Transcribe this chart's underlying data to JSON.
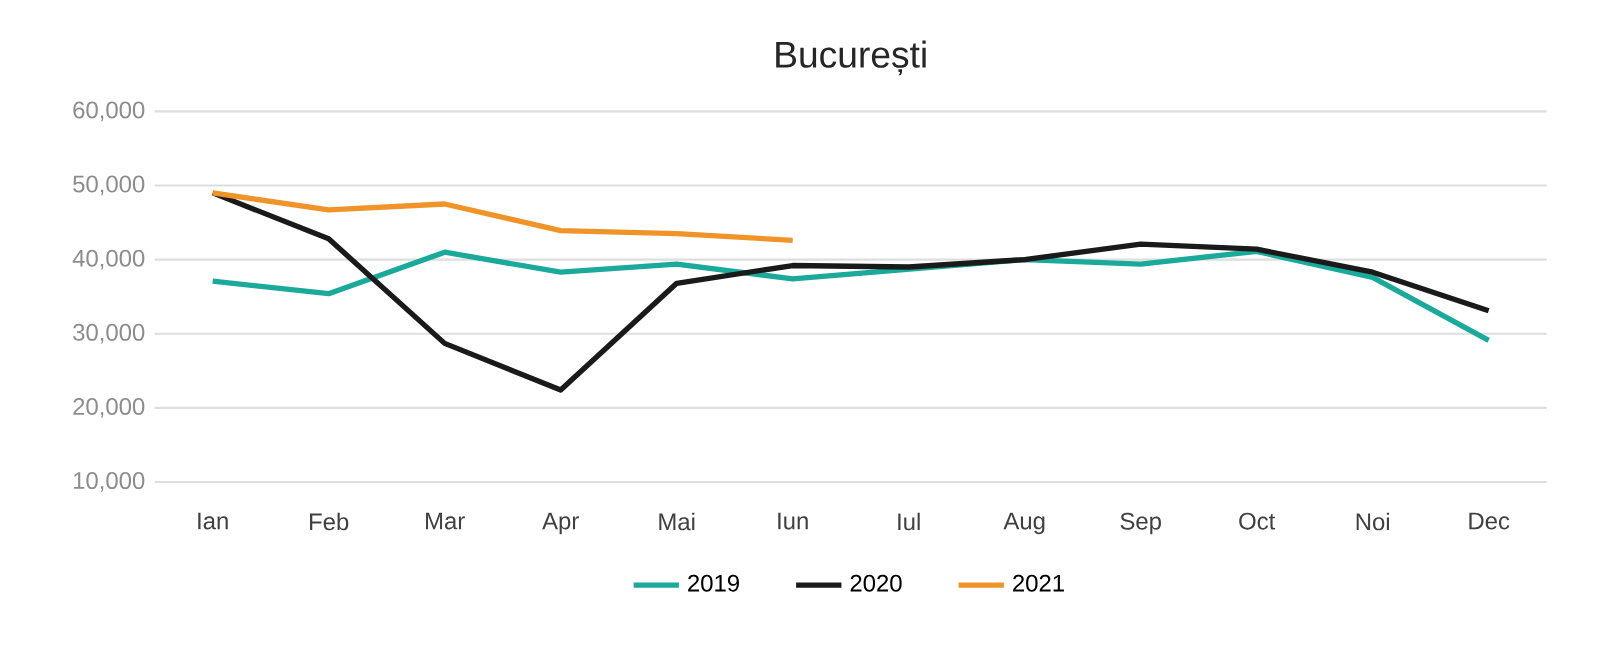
{
  "chart_data": {
    "type": "line",
    "title": "București",
    "categories": [
      "Ian",
      "Feb",
      "Mar",
      "Apr",
      "Mai",
      "Iun",
      "Iul",
      "Aug",
      "Sep",
      "Oct",
      "Noi",
      "Dec"
    ],
    "series": [
      {
        "name": "2019",
        "color": "#1aa99a",
        "values": [
          37100,
          35400,
          41000,
          38300,
          39400,
          37400,
          38700,
          40000,
          39400,
          41100,
          37600,
          29100
        ]
      },
      {
        "name": "2020",
        "color": "#1a1a1a",
        "values": [
          49000,
          42800,
          28700,
          22400,
          36800,
          39200,
          39000,
          40000,
          42100,
          41400,
          38300,
          33100
        ]
      },
      {
        "name": "2021",
        "color": "#f0942a",
        "values": [
          49000,
          46700,
          47500,
          43900,
          43500,
          42600,
          null,
          null,
          null,
          null,
          null,
          null
        ]
      }
    ],
    "ylim": [
      10000,
      60000
    ],
    "yticks": [
      {
        "value": 10000,
        "label": "10,000"
      },
      {
        "value": 20000,
        "label": "20,000"
      },
      {
        "value": 30000,
        "label": "30,000"
      },
      {
        "value": 40000,
        "label": "40,000"
      },
      {
        "value": 50000,
        "label": "50,000"
      },
      {
        "value": 60000,
        "label": "60,000"
      }
    ],
    "grid": "y",
    "legend": "bottom",
    "marker": "none",
    "line_style": "solid"
  }
}
